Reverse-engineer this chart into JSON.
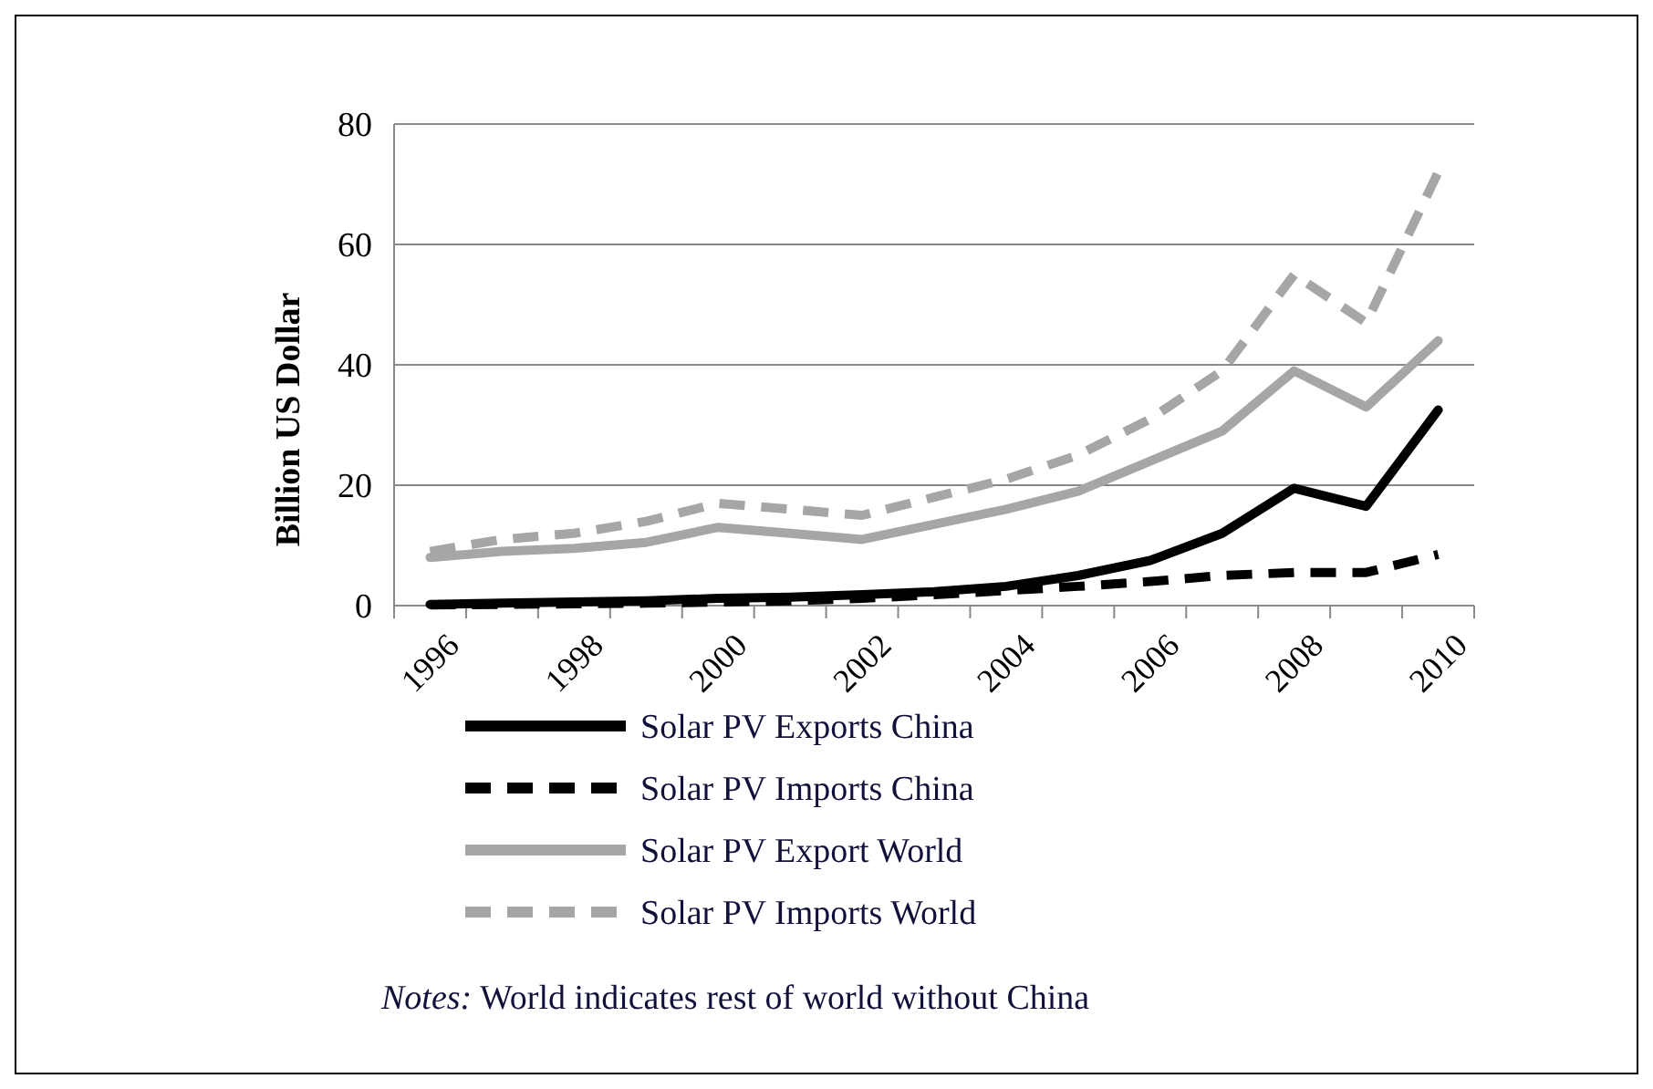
{
  "chart_data": {
    "type": "line",
    "ylabel": "Billion US Dollar",
    "categories": [
      "1996",
      null,
      "1998",
      null,
      "2000",
      null,
      "2002",
      null,
      "2004",
      null,
      "2006",
      null,
      "2008",
      null,
      "2010"
    ],
    "series": [
      {
        "name": "Solar PV Exports China",
        "color": "#000000",
        "line_style": "solid",
        "values": [
          0.2,
          0.4,
          0.6,
          0.8,
          1.2,
          1.4,
          1.8,
          2.3,
          3.2,
          5,
          7.5,
          12,
          19.5,
          16.5,
          32.5
        ]
      },
      {
        "name": "Solar PV Imports China",
        "color": "#000000",
        "line_style": "dashed",
        "values": [
          0.1,
          0.2,
          0.3,
          0.4,
          0.6,
          0.8,
          1.2,
          1.8,
          2.5,
          3.2,
          4,
          5,
          5.5,
          5.5,
          8.5
        ]
      },
      {
        "name": "Solar PV Export World",
        "color": "#a6a6a6",
        "line_style": "solid",
        "values": [
          8,
          9,
          9.5,
          10.5,
          13,
          12,
          11,
          13.5,
          16,
          19,
          24,
          29,
          39,
          33,
          44
        ]
      },
      {
        "name": "Solar PV Imports World",
        "color": "#a6a6a6",
        "line_style": "dashed",
        "values": [
          9,
          11,
          12,
          14,
          17,
          16,
          15,
          18,
          21,
          25,
          31,
          39,
          55,
          47,
          72
        ]
      }
    ],
    "ylim": [
      0,
      80
    ],
    "yticks": [
      0,
      20,
      40,
      60,
      80
    ],
    "grid": "y",
    "legend": "bottom",
    "marker": "none",
    "annotations": [
      "Notes: World indicates rest of world without China"
    ]
  }
}
